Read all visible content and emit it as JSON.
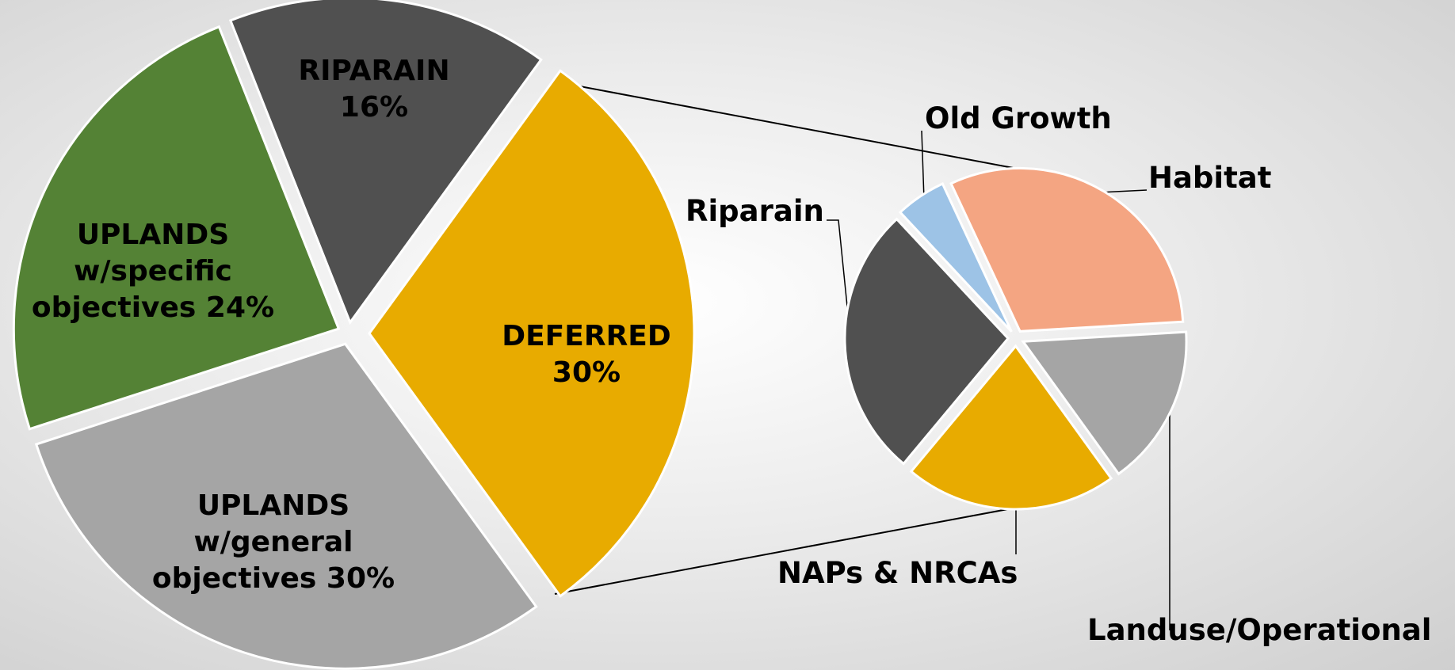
{
  "chart_data": [
    {
      "type": "pie",
      "categories": [
        "RIPARAIN",
        "DEFERRED",
        "UPLANDS w/general objectives",
        "UPLANDS w/specific objectives"
      ],
      "values": [
        16,
        30,
        30,
        24
      ],
      "value_labels": [
        "16%",
        "30%",
        "30%",
        "24%"
      ],
      "colors": [
        "#505050",
        "#e8ab00",
        "#a5a5a5",
        "#548235"
      ]
    },
    {
      "type": "pie",
      "categories": [
        "Habitat",
        "Landuse/Operational",
        "NAPs & NRCAs",
        "Riparain",
        "Old Growth"
      ],
      "values": [
        31,
        16,
        21,
        27,
        5
      ],
      "colors": [
        "#f4a582",
        "#a5a5a5",
        "#e8ab00",
        "#505050",
        "#9dc3e6"
      ]
    }
  ]
}
